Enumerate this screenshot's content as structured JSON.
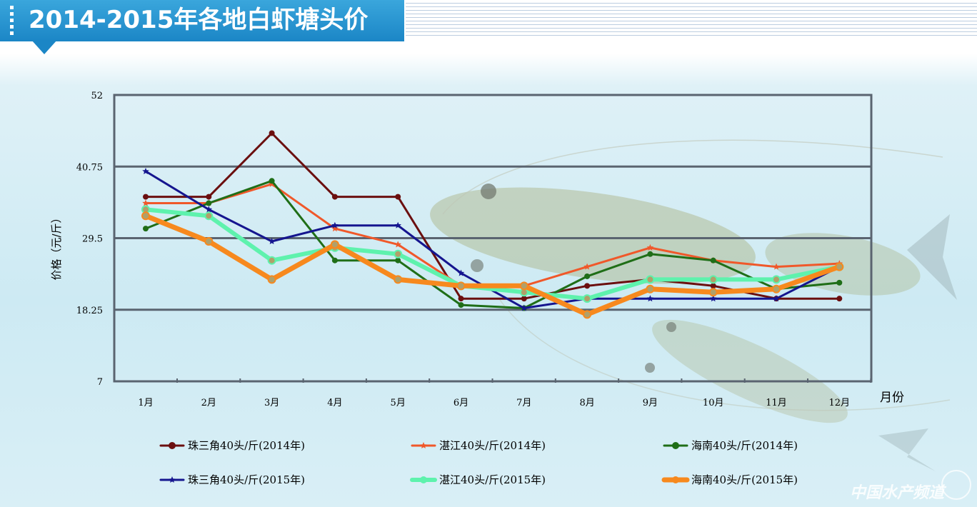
{
  "header": {
    "title": "2014-2015年各地白虾塘头价"
  },
  "watermark": {
    "text": "中国水产频道"
  },
  "chart_data": {
    "type": "line",
    "title": "2014-2015年各地白虾塘头价",
    "xlabel": "月份",
    "ylabel": "价格（元/斤）",
    "ylim": [
      7,
      52
    ],
    "yticks": [
      "7",
      "18.25",
      "29.5",
      "40.75",
      "52"
    ],
    "ytick_values": [
      7,
      18.25,
      29.5,
      40.75,
      52
    ],
    "grid": "horizontal",
    "legend_position": "bottom",
    "categories": [
      "1月",
      "2月",
      "3月",
      "4月",
      "5月",
      "6月",
      "7月",
      "8月",
      "9月",
      "10月",
      "11月",
      "12月"
    ],
    "series": [
      {
        "name": "珠三角40头/斤(2014年)",
        "color": "#6b0f0f",
        "width": 3,
        "marker": "circle",
        "values": [
          36,
          36,
          46,
          36,
          36,
          20,
          20,
          22,
          23,
          22,
          20,
          20
        ]
      },
      {
        "name": "湛江40头/斤(2014年)",
        "color": "#f0582a",
        "width": 3,
        "marker": "star",
        "values": [
          35,
          35,
          38,
          31,
          28.5,
          22,
          22,
          25,
          28,
          26,
          25,
          25.5
        ]
      },
      {
        "name": "海南40头/斤(2014年)",
        "color": "#1f6e17",
        "width": 3,
        "marker": "circle",
        "values": [
          31,
          35,
          38.5,
          26,
          26,
          19,
          18.5,
          23.5,
          27,
          26,
          21.5,
          22.5
        ]
      },
      {
        "name": "珠三角40头/斤(2015年)",
        "color": "#15158f",
        "width": 3,
        "marker": "star",
        "values": [
          40,
          34,
          29,
          31.5,
          31.5,
          24,
          18.5,
          20,
          20,
          20,
          20,
          25
        ]
      },
      {
        "name": "湛江40头/斤(2015年)",
        "color": "#5ef2ad",
        "width": 6,
        "marker": "circle",
        "values": [
          34,
          33,
          26,
          28,
          27,
          22,
          21,
          20,
          23,
          23,
          23,
          25
        ]
      },
      {
        "name": "海南40头/斤(2015年)",
        "color": "#f7891e",
        "width": 7,
        "marker": "circle",
        "values": [
          33,
          29,
          23,
          28.5,
          23,
          22,
          22,
          17.5,
          21.5,
          21,
          21.5,
          25
        ]
      }
    ]
  }
}
